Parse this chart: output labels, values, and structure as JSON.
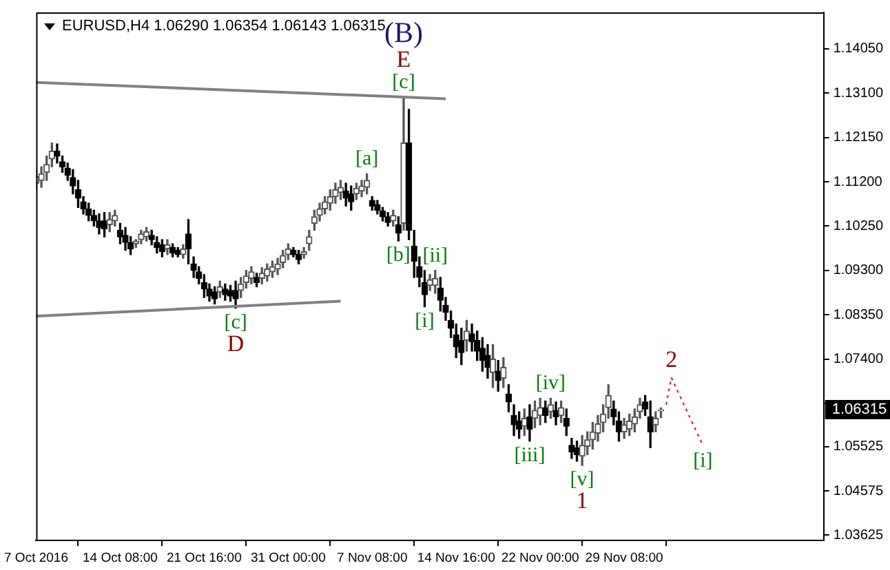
{
  "chart_data": {
    "type": "candlestick",
    "title": "EURUSD,H4 1.06290 1.06354 1.06143 1.06315",
    "categories": [
      "7 Oct 2016",
      null,
      null,
      null,
      null,
      null,
      null,
      null,
      null,
      null,
      null,
      null,
      null,
      null,
      null,
      null,
      "14 Oct 08:00",
      null,
      null,
      null,
      null,
      null,
      null,
      null,
      null,
      null,
      null,
      null,
      null,
      null,
      null,
      null,
      "21 Oct 16:00",
      null,
      null,
      null,
      null,
      null,
      null,
      null,
      null,
      null,
      null,
      null,
      null,
      null,
      null,
      null,
      "31 Oct 00:00",
      null,
      null,
      null,
      null,
      null,
      null,
      null,
      null,
      null,
      null,
      null,
      null,
      null,
      null,
      null,
      "7 Nov 08:00",
      null,
      null,
      null,
      null,
      null,
      null,
      null,
      null,
      null,
      null,
      null,
      null,
      null,
      null,
      null,
      "14 Nov 16:00",
      null,
      null,
      null,
      null,
      null,
      null,
      null,
      null,
      null,
      null,
      null,
      null,
      null,
      null,
      null,
      "22 Nov 00:00",
      null,
      null,
      null,
      null,
      null,
      null,
      null,
      null,
      null,
      null,
      null,
      null,
      null,
      null,
      null,
      "29 Nov 08:00",
      null,
      null,
      null,
      null,
      null,
      null,
      null,
      null,
      null,
      null,
      null,
      null,
      null,
      null,
      null,
      null,
      null,
      null,
      null,
      null,
      null,
      null,
      null,
      null,
      null,
      null,
      null,
      null,
      null,
      null,
      null,
      null,
      null,
      null,
      null,
      null,
      null,
      null
    ],
    "ohlc": [
      [
        1.1117,
        1.1146,
        1.1103,
        1.1131
      ],
      [
        1.1123,
        1.1152,
        1.1108,
        1.1137
      ],
      [
        1.114,
        1.1175,
        1.1123,
        1.1157
      ],
      [
        1.1169,
        1.1203,
        1.1152,
        1.1186
      ],
      [
        1.1186,
        1.1201,
        1.116,
        1.1175
      ],
      [
        1.1163,
        1.1175,
        1.114,
        1.1152
      ],
      [
        1.1149,
        1.116,
        1.1123,
        1.1134
      ],
      [
        1.1129,
        1.1146,
        1.1094,
        1.1111
      ],
      [
        1.1103,
        1.1123,
        1.1065,
        1.1085
      ],
      [
        1.1077,
        1.1088,
        1.1051,
        1.1062
      ],
      [
        1.1062,
        1.1074,
        1.1036,
        1.1048
      ],
      [
        1.1048,
        1.1059,
        1.1025,
        1.1036
      ],
      [
        1.1036,
        1.1051,
        1.1008,
        1.1022
      ],
      [
        1.1036,
        1.1054,
        1.1002,
        1.1019
      ],
      [
        1.1028,
        1.1054,
        1.1013,
        1.1039
      ],
      [
        1.1036,
        1.1059,
        1.1025,
        1.1048
      ],
      [
        1.1016,
        1.1031,
        1.0987,
        1.1002
      ],
      [
        1.1005,
        1.1022,
        1.0973,
        1.099
      ],
      [
        1.099,
        1.1002,
        1.0964,
        1.0976
      ],
      [
        1.0987,
        1.0996,
        1.0979,
        1.0993
      ],
      [
        1.0996,
        1.1016,
        1.0987,
        1.1008
      ],
      [
        1.1002,
        1.1022,
        1.0993,
        1.1013
      ],
      [
        1.1005,
        1.1016,
        1.0985,
        1.0996
      ],
      [
        1.099,
        1.1002,
        1.0967,
        1.0979
      ],
      [
        1.0985,
        1.0996,
        1.0959,
        1.097
      ],
      [
        1.0976,
        1.0996,
        1.0964,
        1.0985
      ],
      [
        1.0979,
        1.0987,
        1.0959,
        1.0967
      ],
      [
        1.0973,
        1.0979,
        1.0959,
        1.0964
      ],
      [
        1.0964,
        1.0985,
        1.0956,
        1.0976
      ],
      [
        1.1008,
        1.1039,
        1.0944,
        1.0976
      ],
      [
        1.0944,
        1.0959,
        1.0915,
        1.093
      ],
      [
        1.0927,
        1.0938,
        1.0901,
        1.0913
      ],
      [
        1.0904,
        1.0921,
        1.0872,
        1.089
      ],
      [
        1.089,
        1.0901,
        1.0864,
        1.0875
      ],
      [
        1.0884,
        1.0895,
        1.0858,
        1.0869
      ],
      [
        1.0884,
        1.0907,
        1.0872,
        1.0895
      ],
      [
        1.089,
        1.0901,
        1.0866,
        1.0878
      ],
      [
        1.0887,
        1.0898,
        1.0864,
        1.0875
      ],
      [
        1.0887,
        1.0907,
        1.0849,
        1.0869
      ],
      [
        1.0887,
        1.0915,
        1.0872,
        1.0901
      ],
      [
        1.0904,
        1.093,
        1.0892,
        1.0918
      ],
      [
        1.0913,
        1.0938,
        1.0901,
        1.0927
      ],
      [
        1.0915,
        1.0924,
        1.0895,
        1.0904
      ],
      [
        1.0913,
        1.0936,
        1.0901,
        1.0924
      ],
      [
        1.0918,
        1.0944,
        1.0907,
        1.0933
      ],
      [
        1.0927,
        1.095,
        1.0915,
        1.0938
      ],
      [
        1.0933,
        1.0956,
        1.0921,
        1.0944
      ],
      [
        1.0947,
        1.0973,
        1.0936,
        1.0962
      ],
      [
        1.0964,
        1.0987,
        1.0953,
        1.0976
      ],
      [
        1.0973,
        1.0979,
        1.0959,
        1.0964
      ],
      [
        1.0964,
        1.0973,
        1.0944,
        1.0953
      ],
      [
        1.0964,
        1.0979,
        1.0956,
        1.097
      ],
      [
        1.0987,
        1.1016,
        1.0973,
        1.1002
      ],
      [
        1.1031,
        1.1059,
        1.1016,
        1.1045
      ],
      [
        1.1048,
        1.1074,
        1.1036,
        1.1062
      ],
      [
        1.1062,
        1.1088,
        1.1051,
        1.1077
      ],
      [
        1.1074,
        1.1103,
        1.1059,
        1.1088
      ],
      [
        1.1088,
        1.1117,
        1.1074,
        1.1103
      ],
      [
        1.1097,
        1.1123,
        1.1082,
        1.1108
      ],
      [
        1.11,
        1.1117,
        1.1068,
        1.1085
      ],
      [
        1.1094,
        1.1111,
        1.1059,
        1.1077
      ],
      [
        1.1094,
        1.1117,
        1.1082,
        1.1106
      ],
      [
        1.11,
        1.1123,
        1.1088,
        1.1111
      ],
      [
        1.1108,
        1.1137,
        1.1094,
        1.1123
      ],
      [
        1.108,
        1.1088,
        1.1059,
        1.1068
      ],
      [
        1.1071,
        1.108,
        1.1051,
        1.1059
      ],
      [
        1.1057,
        1.1065,
        1.1036,
        1.1045
      ],
      [
        1.1045,
        1.1054,
        1.1025,
        1.1033
      ],
      [
        1.1036,
        1.1059,
        1.1025,
        1.1048
      ],
      [
        1.1028,
        1.1045,
        1.0993,
        1.101
      ],
      [
        1.1031,
        1.1301,
        1.1016,
        1.1203
      ],
      [
        1.1203,
        1.1275,
        1.0996,
        1.1016
      ],
      [
        1.0982,
        1.1016,
        1.0915,
        1.095
      ],
      [
        1.0938,
        1.0959,
        1.0895,
        1.0915
      ],
      [
        1.0904,
        1.093,
        1.0852,
        1.0878
      ],
      [
        1.0898,
        1.0921,
        1.0887,
        1.091
      ],
      [
        1.0898,
        1.093,
        1.0881,
        1.0913
      ],
      [
        1.0892,
        1.0915,
        1.0843,
        1.0866
      ],
      [
        1.0855,
        1.0872,
        1.0823,
        1.084
      ],
      [
        1.0823,
        1.0843,
        1.0786,
        1.0806
      ],
      [
        1.0792,
        1.0815,
        1.0743,
        1.0766
      ],
      [
        1.078,
        1.0806,
        1.0728,
        1.0754
      ],
      [
        1.078,
        1.0823,
        1.0757,
        1.08
      ],
      [
        1.0794,
        1.0815,
        1.0757,
        1.0777
      ],
      [
        1.078,
        1.08,
        1.0737,
        1.0757
      ],
      [
        1.0763,
        1.0786,
        1.0714,
        1.0737
      ],
      [
        1.0748,
        1.0771,
        1.0699,
        1.0722
      ],
      [
        1.0711,
        1.0771,
        1.0679,
        1.074
      ],
      [
        1.0714,
        1.0737,
        1.0671,
        1.0694
      ],
      [
        1.0699,
        1.0743,
        1.0679,
        1.0722
      ],
      [
        1.0665,
        1.0685,
        1.0627,
        1.0648
      ],
      [
        1.0619,
        1.0642,
        1.0576,
        1.0599
      ],
      [
        1.0607,
        1.0627,
        1.057,
        1.059
      ],
      [
        1.0596,
        1.0633,
        1.0576,
        1.0613
      ],
      [
        1.0616,
        1.0642,
        1.0564,
        1.059
      ],
      [
        1.0613,
        1.065,
        1.0593,
        1.063
      ],
      [
        1.0619,
        1.0656,
        1.0599,
        1.0636
      ],
      [
        1.0636,
        1.065,
        1.0604,
        1.0619
      ],
      [
        1.0627,
        1.0656,
        1.0613,
        1.0642
      ],
      [
        1.063,
        1.0648,
        1.0599,
        1.0616
      ],
      [
        1.0619,
        1.065,
        1.0604,
        1.0636
      ],
      [
        1.0613,
        1.0633,
        1.0576,
        1.0596
      ],
      [
        1.0555,
        1.057,
        1.0527,
        1.0541
      ],
      [
        1.055,
        1.0564,
        1.0521,
        1.0535
      ],
      [
        1.0532,
        1.0576,
        1.0512,
        1.0555
      ],
      [
        1.0553,
        1.0584,
        1.0535,
        1.0567
      ],
      [
        1.0567,
        1.0604,
        1.0547,
        1.0584
      ],
      [
        1.0581,
        1.0619,
        1.0564,
        1.0601
      ],
      [
        1.0604,
        1.0642,
        1.0584,
        1.0622
      ],
      [
        1.0636,
        1.0685,
        1.0613,
        1.0662
      ],
      [
        1.0633,
        1.065,
        1.0599,
        1.0616
      ],
      [
        1.0607,
        1.0627,
        1.0564,
        1.0584
      ],
      [
        1.0584,
        1.0613,
        1.057,
        1.0599
      ],
      [
        1.059,
        1.0622,
        1.0576,
        1.0607
      ],
      [
        1.0601,
        1.0633,
        1.0584,
        1.0616
      ],
      [
        1.0627,
        1.0656,
        1.0613,
        1.0642
      ],
      [
        1.0648,
        1.0662,
        1.0619,
        1.0633
      ],
      [
        1.0616,
        1.065,
        1.055,
        1.0584
      ],
      [
        1.0599,
        1.0627,
        1.0584,
        1.0613
      ],
      [
        1.0629,
        1.06354,
        1.06143,
        1.06315
      ],
      null,
      null,
      null,
      null,
      null,
      null,
      null,
      null,
      null,
      null,
      null,
      null,
      null,
      null,
      null,
      null,
      null,
      null,
      null,
      null,
      null,
      null,
      null,
      null,
      null,
      null,
      null,
      null,
      null,
      null,
      null
    ],
    "value_labels": [
      null,
      null,
      null,
      null,
      null,
      null,
      null,
      null,
      null,
      null,
      null,
      null,
      null,
      null,
      null,
      null,
      null,
      null,
      null,
      null,
      null,
      null,
      null,
      null,
      null,
      null,
      null,
      null,
      null,
      null,
      null,
      null,
      null,
      null,
      null,
      null,
      null,
      null,
      "[c]\nD",
      null,
      null,
      null,
      null,
      null,
      null,
      null,
      null,
      null,
      null,
      null,
      null,
      null,
      null,
      null,
      null,
      null,
      null,
      null,
      null,
      null,
      null,
      null,
      null,
      "[a]",
      null,
      null,
      null,
      null,
      null,
      "[b]",
      "(B)\nE\n[c]",
      null,
      null,
      null,
      "[i]",
      null,
      "[ii]",
      null,
      null,
      null,
      null,
      null,
      null,
      null,
      null,
      null,
      null,
      null,
      null,
      null,
      null,
      null,
      null,
      null,
      "[iii]",
      null,
      null,
      null,
      "[iv]",
      null,
      null,
      null,
      null,
      null,
      "[v]\n1",
      null,
      null,
      null,
      null,
      null,
      null,
      null,
      null,
      null,
      null,
      null,
      null,
      null,
      null,
      null,
      null,
      null,
      null,
      null,
      null,
      null,
      null,
      null,
      null,
      null,
      null,
      null,
      null,
      null,
      null,
      null,
      null,
      null,
      null,
      null,
      null,
      null,
      null,
      null,
      null,
      null,
      null,
      null,
      null,
      null,
      null
    ],
    "series": [
      {
        "type": "line",
        "color": "#808080",
        "line_style": "solid",
        "values": [
          1.1333,
          null,
          null,
          null,
          null,
          null,
          null,
          null,
          null,
          null,
          null,
          null,
          null,
          null,
          null,
          null,
          null,
          null,
          null,
          null,
          null,
          null,
          null,
          null,
          null,
          null,
          null,
          null,
          null,
          null,
          null,
          null,
          null,
          null,
          null,
          null,
          null,
          null,
          null,
          null,
          null,
          null,
          null,
          null,
          null,
          null,
          null,
          null,
          null,
          null,
          null,
          null,
          null,
          null,
          null,
          null,
          null,
          null,
          null,
          null,
          null,
          null,
          null,
          null,
          null,
          null,
          null,
          null,
          null,
          null,
          null,
          null,
          null,
          null,
          null,
          null,
          null,
          null,
          1.1298,
          null,
          null,
          null,
          null,
          null,
          null,
          null,
          null,
          null,
          null,
          null,
          null,
          null,
          null,
          null,
          null,
          null,
          null,
          null,
          null,
          null,
          null,
          null,
          null,
          null,
          null,
          null,
          null,
          null,
          null,
          null,
          null,
          null,
          null,
          null,
          null,
          null,
          null,
          null,
          null,
          null,
          null,
          null,
          null,
          null,
          null,
          null,
          null,
          null,
          null,
          null,
          null,
          null,
          null,
          null,
          null,
          null,
          null,
          null,
          null,
          null,
          null,
          null,
          null,
          null,
          null,
          null,
          null,
          null,
          null,
          null,
          null
        ]
      },
      {
        "type": "line",
        "color": "#808080",
        "line_style": "solid",
        "values": [
          1.0832,
          null,
          null,
          null,
          null,
          null,
          null,
          null,
          null,
          null,
          null,
          null,
          null,
          null,
          null,
          null,
          null,
          null,
          null,
          null,
          null,
          null,
          null,
          null,
          null,
          null,
          null,
          null,
          null,
          null,
          null,
          null,
          null,
          null,
          null,
          null,
          null,
          null,
          null,
          null,
          null,
          null,
          null,
          null,
          null,
          null,
          null,
          null,
          null,
          null,
          null,
          null,
          null,
          null,
          null,
          null,
          null,
          null,
          1.0864,
          null,
          null,
          null,
          null,
          null,
          null,
          null,
          null,
          null,
          null,
          null,
          null,
          null,
          null,
          null,
          null,
          null,
          null,
          null,
          null,
          null,
          null,
          null,
          null,
          null,
          null,
          null,
          null,
          null,
          null,
          null,
          null,
          null,
          null,
          null,
          null,
          null,
          null,
          null,
          null,
          null,
          null,
          null,
          null,
          null,
          null,
          null,
          null,
          null,
          null,
          null,
          null,
          null,
          null,
          null,
          null,
          null,
          null,
          null,
          null,
          null,
          null,
          null,
          null,
          null,
          null,
          null,
          null,
          null,
          null,
          null,
          null,
          null,
          null,
          null,
          null,
          null,
          null,
          null,
          null,
          null,
          null,
          null,
          null,
          null,
          null,
          null,
          null,
          null,
          null,
          null,
          null
        ]
      },
      {
        "type": "line",
        "color": "#ff0000",
        "line_style": "dotted",
        "values": [
          null,
          null,
          null,
          null,
          null,
          null,
          null,
          null,
          null,
          null,
          null,
          null,
          null,
          null,
          null,
          null,
          null,
          null,
          null,
          null,
          null,
          null,
          null,
          null,
          null,
          null,
          null,
          null,
          null,
          null,
          null,
          null,
          null,
          null,
          null,
          null,
          null,
          null,
          null,
          null,
          null,
          null,
          null,
          null,
          null,
          null,
          null,
          null,
          null,
          null,
          null,
          null,
          null,
          null,
          null,
          null,
          null,
          null,
          null,
          null,
          null,
          null,
          null,
          null,
          null,
          null,
          null,
          null,
          null,
          null,
          null,
          null,
          null,
          null,
          null,
          null,
          null,
          null,
          null,
          null,
          null,
          null,
          null,
          null,
          null,
          null,
          null,
          null,
          null,
          null,
          null,
          null,
          null,
          null,
          null,
          null,
          null,
          null,
          null,
          null,
          null,
          null,
          null,
          null,
          null,
          null,
          null,
          null,
          null,
          null,
          null,
          null,
          null,
          null,
          null,
          null,
          null,
          null,
          null,
          null,
          1.0642,
          1.07,
          null,
          null,
          null,
          null,
          null,
          1.0555,
          null,
          null,
          null,
          null,
          null,
          null,
          null,
          null,
          null,
          null,
          null,
          null,
          null,
          null,
          null,
          null,
          null,
          null,
          null,
          null,
          null,
          null,
          null
        ]
      }
    ],
    "ylim": [
      1.0351,
      1.1483
    ],
    "yticks": [
      {
        "value": 1.1405,
        "label": "1.14050"
      },
      {
        "value": 1.131,
        "label": "1.13100"
      },
      {
        "value": 1.1215,
        "label": "1.12150"
      },
      {
        "value": 1.112,
        "label": "1.11200"
      },
      {
        "value": 1.1025,
        "label": "1.10250"
      },
      {
        "value": 1.093,
        "label": "1.09300"
      },
      {
        "value": 1.0835,
        "label": "1.08350"
      },
      {
        "value": 1.074,
        "label": "1.07400"
      },
      {
        "value": 1.0645,
        "label": null
      },
      1.05525,
      1.04575,
      1.03625
    ],
    "annotations": [
      "1.06315",
      {
        "text": "2",
        "y": 1.07
      },
      {
        "text": "[i]",
        "y": 1.0555
      }
    ]
  }
}
